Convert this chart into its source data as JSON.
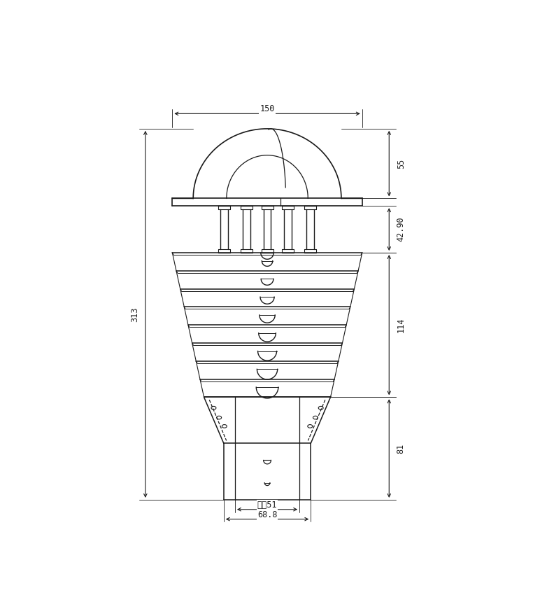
{
  "bg_color": "#ffffff",
  "line_color": "#1a1a1a",
  "fig_width": 7.62,
  "fig_height": 8.8,
  "annotations": {
    "top_width_label": "150",
    "dim_55": "55",
    "dim_42_90": "42.90",
    "dim_114": "114",
    "dim_81": "81",
    "dim_313": "313",
    "inner_diam_label": "内弲51",
    "outer_base_label": "68.8"
  },
  "louvre_count": 8,
  "pillar_count": 5
}
